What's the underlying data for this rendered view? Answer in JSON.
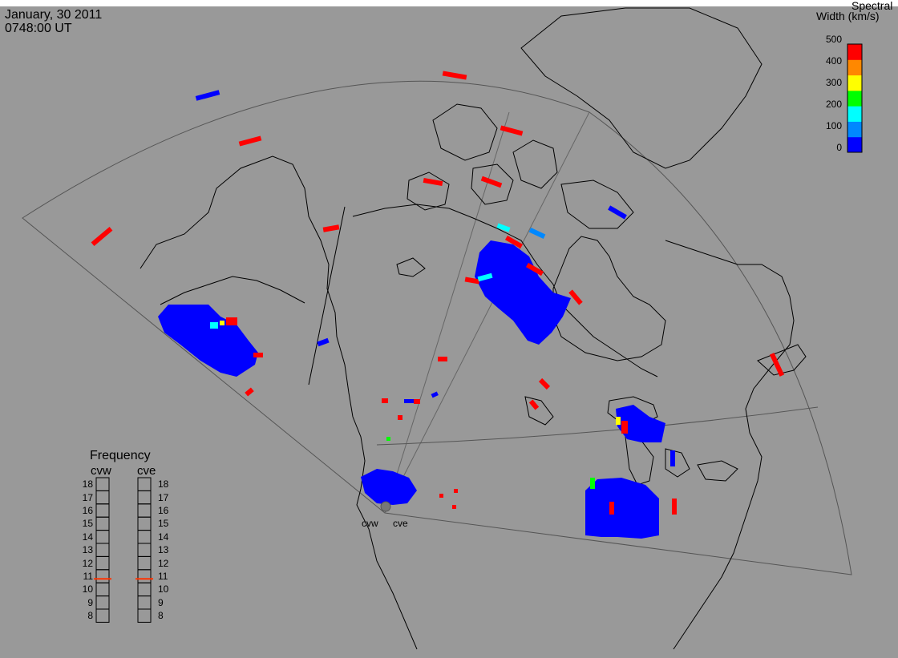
{
  "header": {
    "date": "January, 30 2011",
    "time": "0748:00 UT"
  },
  "colorbar": {
    "title_line1": "Spectral",
    "title_line2": "Width (km/s)",
    "ticks": [
      "500",
      "400",
      "300",
      "200",
      "100",
      "0"
    ],
    "colors": [
      "#0000ff",
      "#0088ff",
      "#00ffff",
      "#00ff00",
      "#ffff00",
      "#ff8800",
      "#ff0000"
    ]
  },
  "frequency": {
    "title": "Frequency",
    "radars": [
      "cvw",
      "cve"
    ],
    "ticks": [
      "18",
      "17",
      "16",
      "15",
      "14",
      "13",
      "12",
      "11",
      "10",
      "9",
      "8"
    ],
    "cvw_value": 10.8,
    "cve_value": 10.8
  },
  "sites": {
    "cvw": "cvw",
    "cve": "cve"
  },
  "colors": {
    "background": "#999999",
    "coast": "#000000",
    "scatter_low": "#0000ff",
    "scatter_high": "#ff0000"
  }
}
